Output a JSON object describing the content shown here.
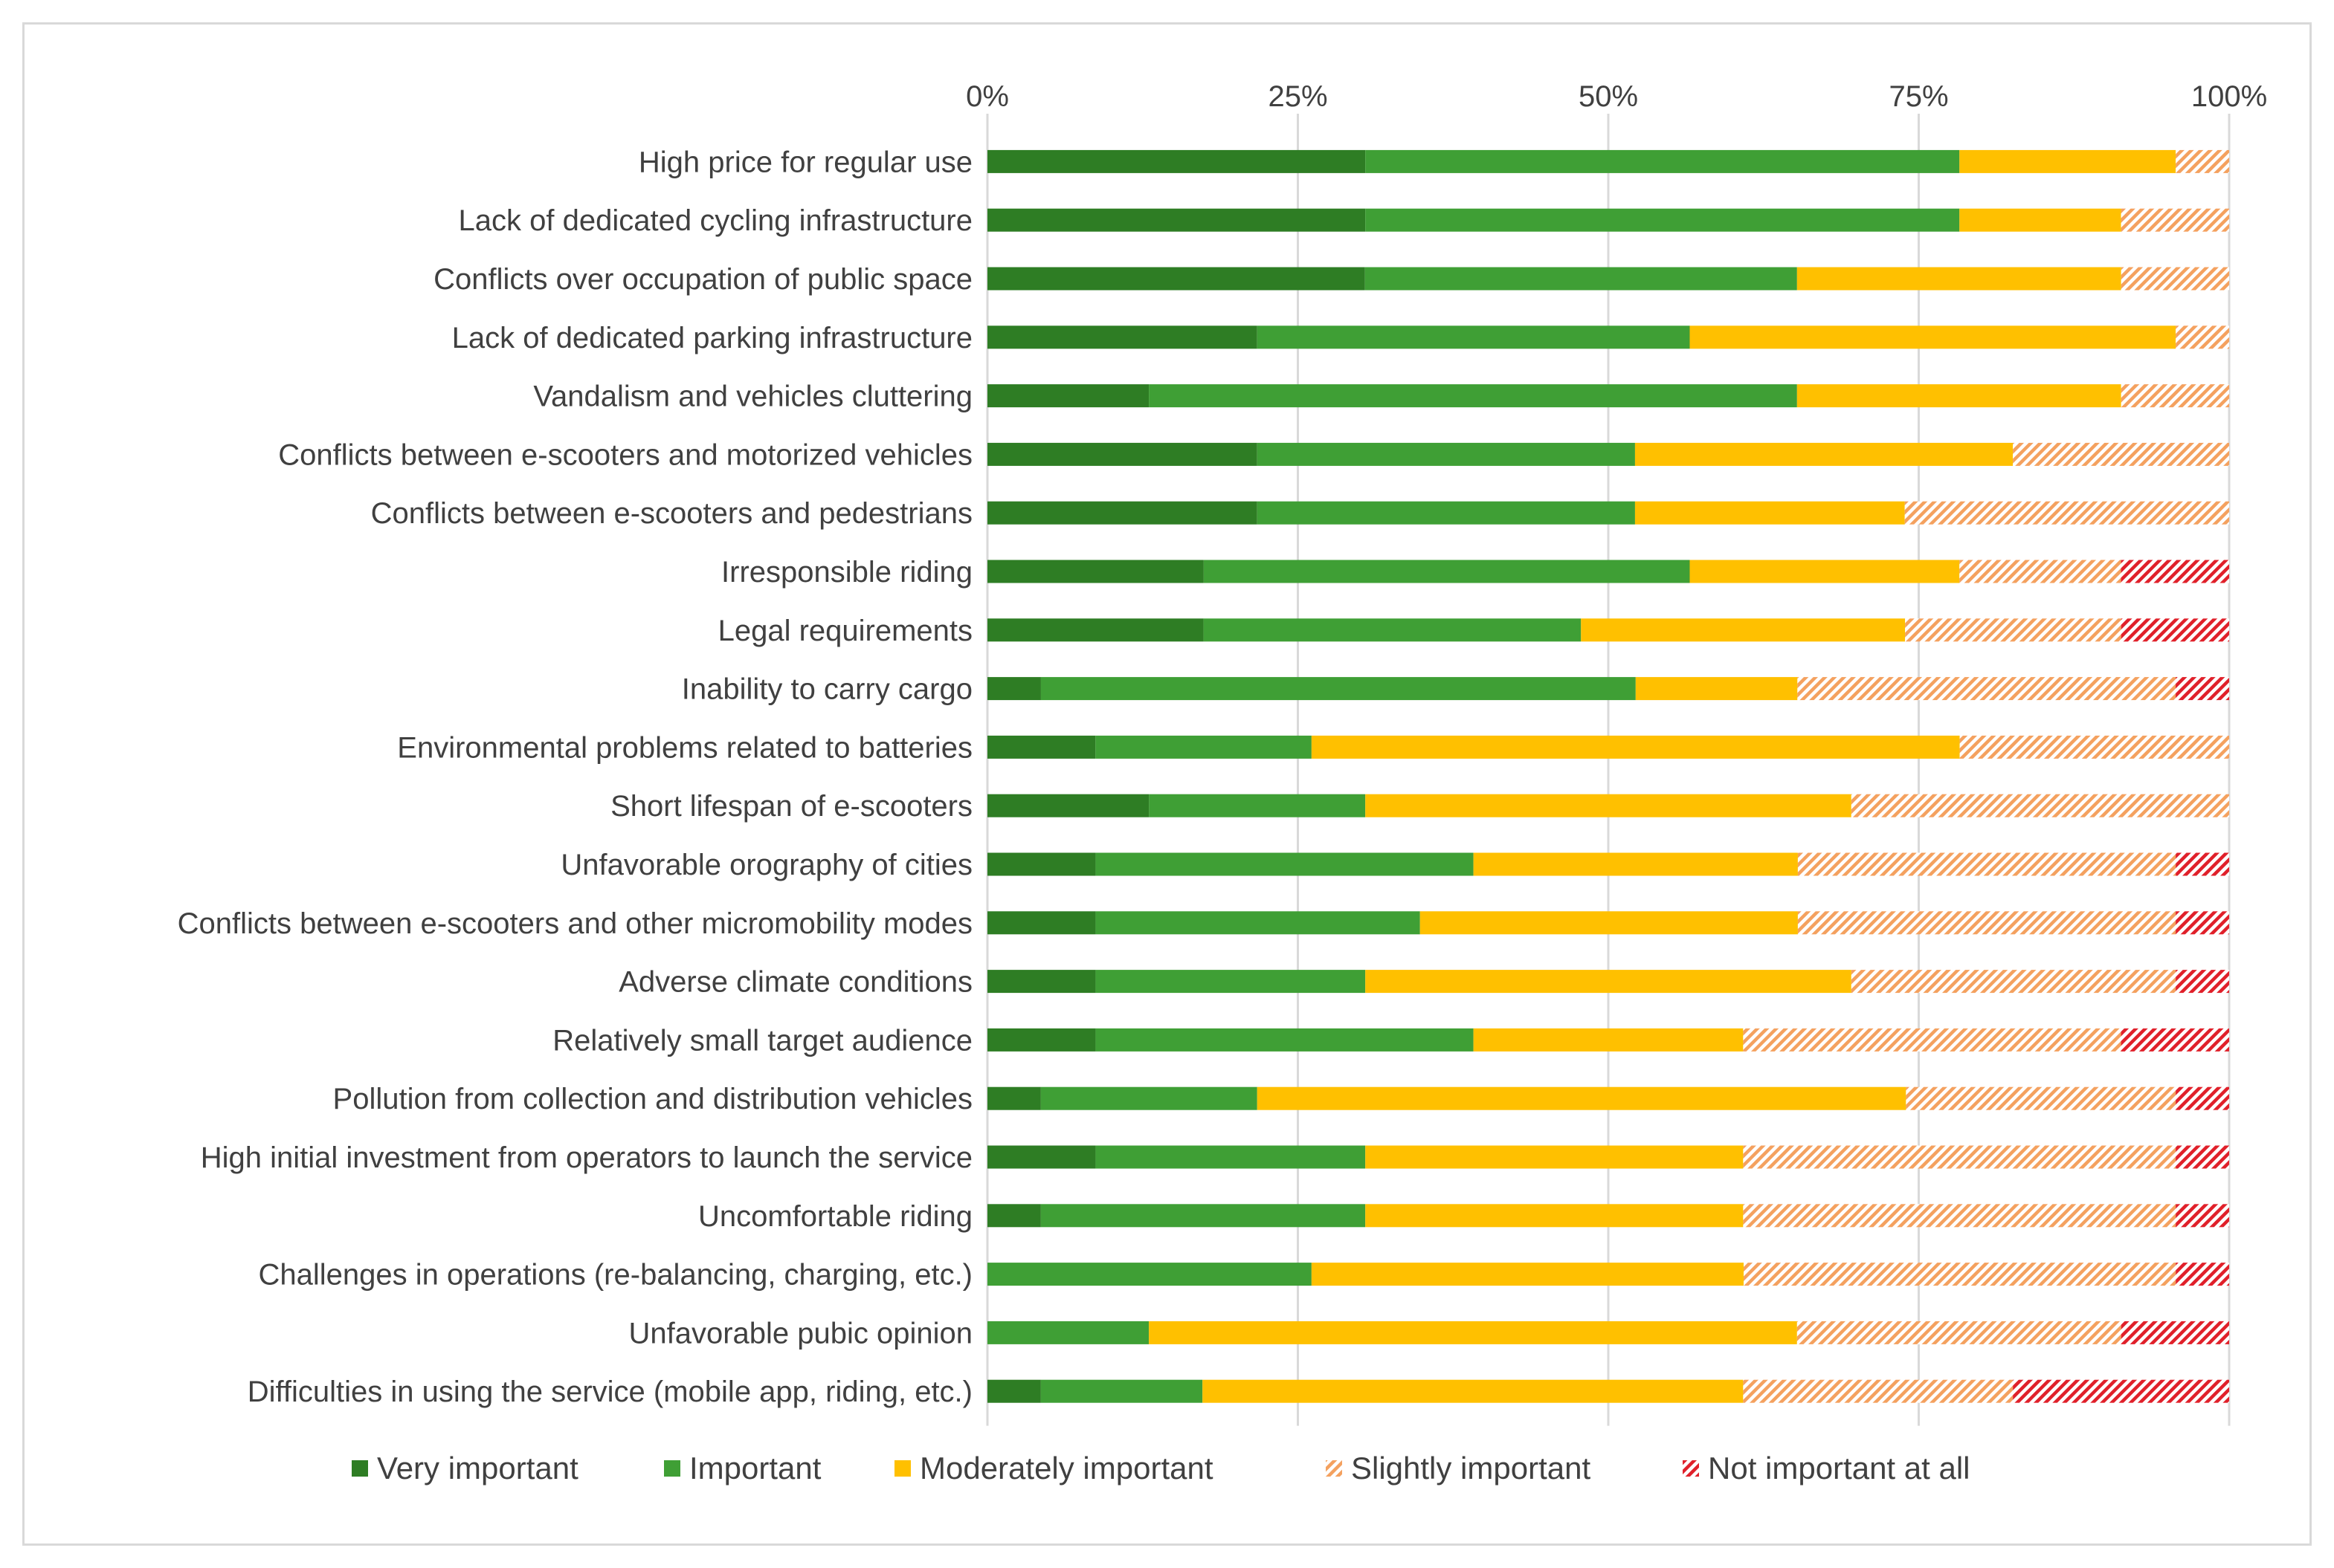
{
  "chart_data": {
    "type": "bar",
    "orientation": "horizontal",
    "stacked": true,
    "normalized_percent": true,
    "title": "",
    "xlabel": "",
    "ylabel": "",
    "xlim": [
      0,
      100
    ],
    "x_ticks": [
      "0%",
      "25%",
      "50%",
      "75%",
      "100%"
    ],
    "grid": true,
    "legend_position": "bottom",
    "categories": [
      "High price for regular use",
      "Lack of dedicated cycling infrastructure",
      "Conflicts over occupation of public space",
      "Lack of dedicated parking infrastructure",
      "Vandalism and vehicles cluttering",
      "Conflicts between e-scooters and motorized vehicles",
      "Conflicts between e-scooters and pedestrians",
      "Irresponsible riding",
      "Legal requirements",
      "Inability to carry cargo",
      "Environmental problems related to batteries",
      "Short lifespan of e-scooters",
      "Unfavorable orography of cities",
      "Conflicts between e-scooters and other micromobility modes",
      "Adverse climate conditions",
      "Relatively small target audience",
      "Pollution from collection and distribution vehicles",
      "High initial investment from operators to launch the service",
      "Uncomfortable riding",
      "Challenges in operations (re-balancing, charging, etc.)",
      "Unfavorable pubic opinion",
      "Difficulties in using the service (mobile app, riding, etc.)"
    ],
    "series": [
      {
        "name": "Very important",
        "color": "#2e7d24",
        "pattern": "solid",
        "values": [
          30.4,
          30.4,
          30.4,
          21.7,
          13.0,
          21.7,
          21.7,
          17.4,
          17.4,
          4.3,
          8.7,
          13.0,
          8.7,
          8.7,
          8.7,
          8.7,
          4.3,
          8.7,
          4.3,
          0,
          0,
          4.3
        ]
      },
      {
        "name": "Important",
        "color": "#3f9f35",
        "pattern": "solid",
        "values": [
          47.8,
          47.8,
          34.8,
          34.8,
          52.2,
          30.4,
          30.4,
          39.1,
          30.4,
          47.8,
          17.4,
          17.4,
          30.4,
          26.1,
          21.7,
          30.4,
          17.4,
          21.7,
          26.1,
          26.1,
          13.0,
          13.0
        ]
      },
      {
        "name": "Moderately important",
        "color": "#ffc000",
        "pattern": "solid",
        "values": [
          17.4,
          13.0,
          26.1,
          39.1,
          26.1,
          30.4,
          21.7,
          21.7,
          26.1,
          13.0,
          52.2,
          39.1,
          26.1,
          30.4,
          39.1,
          21.7,
          52.2,
          30.4,
          30.4,
          34.8,
          52.2,
          43.5
        ]
      },
      {
        "name": "Slightly important",
        "color": "#f4a15f",
        "pattern": "hatch",
        "values": [
          4.3,
          8.7,
          8.7,
          4.3,
          8.7,
          17.4,
          26.1,
          13.0,
          17.4,
          30.4,
          21.7,
          30.4,
          30.4,
          30.4,
          26.1,
          30.4,
          21.7,
          34.8,
          34.8,
          34.8,
          26.1,
          21.7
        ]
      },
      {
        "name": "Not important at all",
        "color": "#e0202a",
        "pattern": "hatch",
        "values": [
          0,
          0,
          0,
          0,
          0,
          0,
          0,
          8.7,
          8.7,
          4.3,
          0,
          0,
          4.3,
          4.3,
          4.3,
          8.7,
          4.3,
          4.3,
          4.3,
          4.3,
          8.7,
          17.4
        ]
      }
    ]
  }
}
